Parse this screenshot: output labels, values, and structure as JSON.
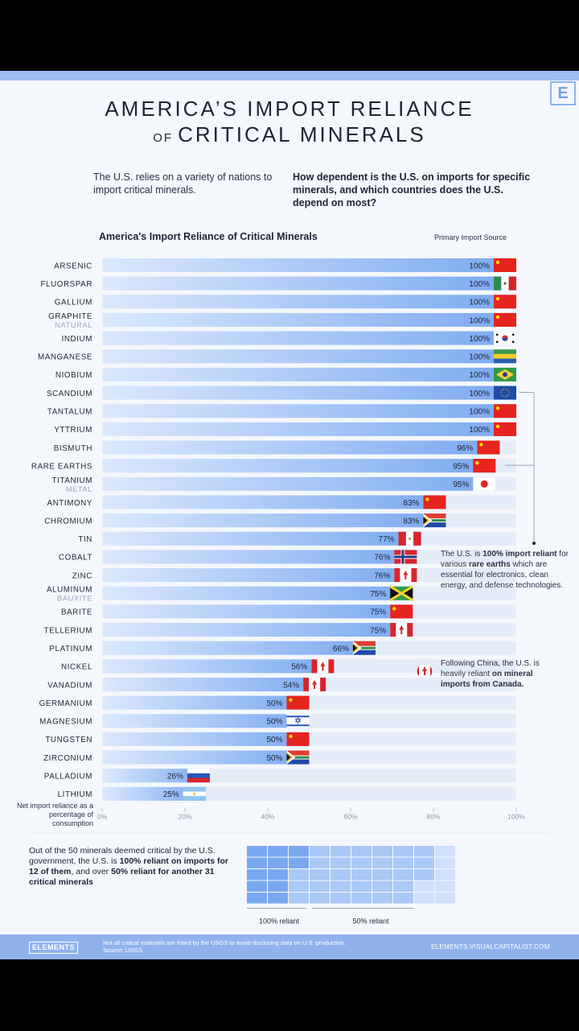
{
  "header": {
    "logo": "E",
    "title_line1": "AMERICA'S IMPORT RELIANCE",
    "title_of": "OF",
    "title_line2": "CRITICAL MINERALS",
    "intro_left": "The U.S. relies on a variety of nations to import critical minerals.",
    "intro_right": "How dependent is the U.S. on imports for specific minerals, and which countries does the U.S. depend on most?"
  },
  "colors": {
    "bar_light": "#dce9fd",
    "bar_dark": "#7aa8f0",
    "accent": "#8fb2ec",
    "text": "#1d2436"
  },
  "chart_data": {
    "type": "bar",
    "orientation": "horizontal",
    "title": "America's Import Reliance of Critical Minerals",
    "source_header": "Primary Import Source",
    "xlabel": "Net import reliance as a percentage of consumption",
    "xlim": [
      0,
      100
    ],
    "xticks": [
      "0%",
      "20%",
      "40%",
      "60%",
      "80%",
      "100%"
    ],
    "categories": [
      {
        "name": "ARSENIC",
        "sub": "",
        "value": 100,
        "label": "100%",
        "source": "China"
      },
      {
        "name": "FLUORSPAR",
        "sub": "",
        "value": 100,
        "label": "100%",
        "source": "Mexico"
      },
      {
        "name": "GALLIUM",
        "sub": "",
        "value": 100,
        "label": "100%",
        "source": "China"
      },
      {
        "name": "GRAPHITE",
        "sub": "NATURAL",
        "value": 100,
        "label": "100%",
        "source": "China"
      },
      {
        "name": "INDIUM",
        "sub": "",
        "value": 100,
        "label": "100%",
        "source": "South Korea"
      },
      {
        "name": "MANGANESE",
        "sub": "",
        "value": 100,
        "label": "100%",
        "source": "Gabon"
      },
      {
        "name": "NIOBIUM",
        "sub": "",
        "value": 100,
        "label": "100%",
        "source": "Brazil"
      },
      {
        "name": "SCANDIUM",
        "sub": "",
        "value": 100,
        "label": "100%",
        "source": "European Union"
      },
      {
        "name": "TANTALUM",
        "sub": "",
        "value": 100,
        "label": "100%",
        "source": "China"
      },
      {
        "name": "YTTRIUM",
        "sub": "",
        "value": 100,
        "label": "100%",
        "source": "China"
      },
      {
        "name": "BISMUTH",
        "sub": "",
        "value": 96,
        "label": "96%",
        "source": "China"
      },
      {
        "name": "RARE EARTHS",
        "sub": "",
        "value": 95,
        "label": "95%",
        "source": "China"
      },
      {
        "name": "TITANIUM",
        "sub": "METAL",
        "value": 95,
        "label": "95%",
        "source": "Japan"
      },
      {
        "name": "ANTIMONY",
        "sub": "",
        "value": 83,
        "label": "83%",
        "source": "China"
      },
      {
        "name": "CHROMIUM",
        "sub": "",
        "value": 83,
        "label": "83%",
        "source": "South Africa"
      },
      {
        "name": "TIN",
        "sub": "",
        "value": 77,
        "label": "77%",
        "source": "Peru"
      },
      {
        "name": "COBALT",
        "sub": "",
        "value": 76,
        "label": "76%",
        "source": "Norway"
      },
      {
        "name": "ZINC",
        "sub": "",
        "value": 76,
        "label": "76%",
        "source": "Canada"
      },
      {
        "name": "ALUMINUM",
        "sub": "BAUXITE",
        "value": 75,
        "label": "75%",
        "source": "Jamaica"
      },
      {
        "name": "BARITE",
        "sub": "",
        "value": 75,
        "label": "75%",
        "source": "China"
      },
      {
        "name": "TELLERIUM",
        "sub": "",
        "value": 75,
        "label": "75%",
        "source": "Canada"
      },
      {
        "name": "PLATINUM",
        "sub": "",
        "value": 66,
        "label": "66%",
        "source": "South Africa"
      },
      {
        "name": "NICKEL",
        "sub": "",
        "value": 56,
        "label": "56%",
        "source": "Canada"
      },
      {
        "name": "VANADIUM",
        "sub": "",
        "value": 54,
        "label": "54%",
        "source": "Canada"
      },
      {
        "name": "GERMANIUM",
        "sub": "",
        "value": 50,
        "label": "50%",
        "source": "China"
      },
      {
        "name": "MAGNESIUM",
        "sub": "",
        "value": 50,
        "label": "50%",
        "source": "Israel"
      },
      {
        "name": "TUNGSTEN",
        "sub": "",
        "value": 50,
        "label": "50%",
        "source": "China"
      },
      {
        "name": "ZIRCONIUM",
        "sub": "",
        "value": 50,
        "label": "50%",
        "source": "South Africa"
      },
      {
        "name": "PALLADIUM",
        "sub": "",
        "value": 26,
        "label": "26%",
        "source": "Russia"
      },
      {
        "name": "LITHIUM",
        "sub": "",
        "value": 25,
        "label": "25%",
        "source": "Argentina"
      }
    ]
  },
  "notes": {
    "rare_earths_pre": "The U.S. is ",
    "rare_earths_b1": "100% import reliant",
    "rare_earths_mid": " for various ",
    "rare_earths_b2": "rare earths",
    "rare_earths_post": " which are essential for electronics, clean energy, and defense technologies.",
    "canada_pre": "Following China, the U.S. is heavily reliant ",
    "canada_b": "on mineral imports from Canada."
  },
  "summary": {
    "text_pre": "Out of the 50 minerals deemed critical by the U.S. government, the U.S. is ",
    "text_b1": "100% reliant on imports for 12 of them",
    "text_mid": ", and over ",
    "text_b2": "50% reliant for another 31 critical minerals",
    "label_100": "100% reliant",
    "label_50": "50% reliant",
    "total": 50,
    "full_reliant": 12,
    "over_half_reliant": 31
  },
  "footer": {
    "logo": "ELEMENTS",
    "note": "Not all critical materials are listed by the USGS to avoid disclosing data on U.S. production.",
    "source": "Source: USGS",
    "url": "ELEMENTS.VISUALCAPITALIST.COM"
  }
}
